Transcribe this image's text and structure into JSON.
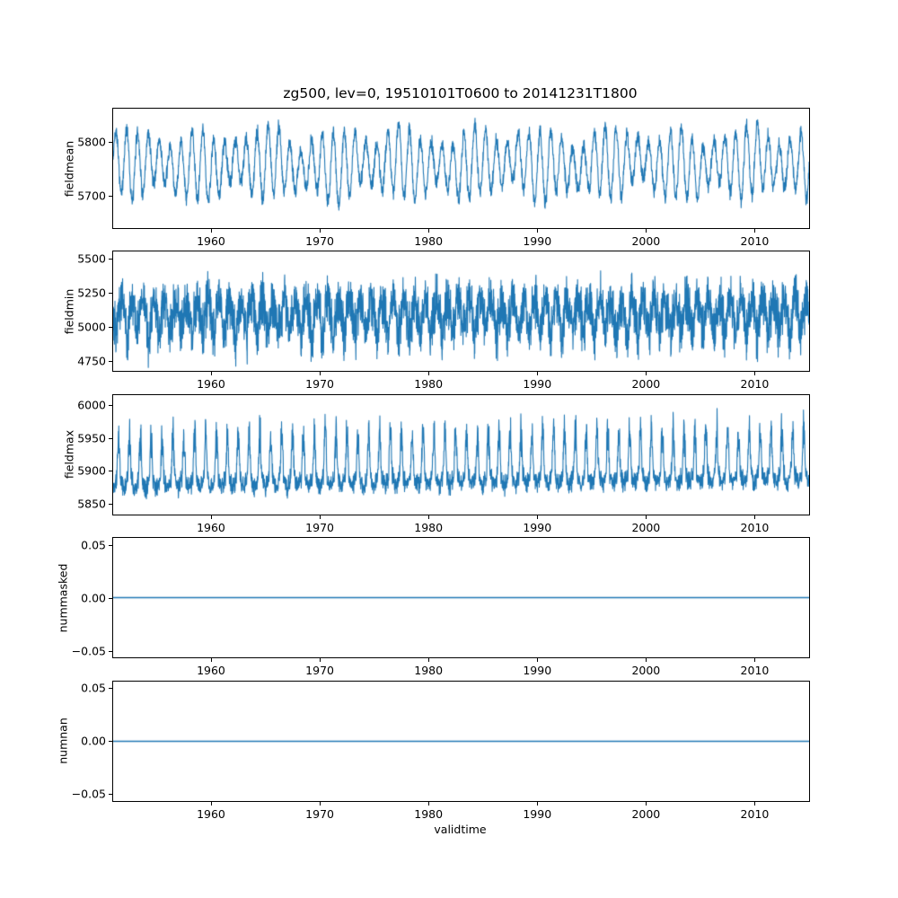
{
  "figure": {
    "title": "zg500, lev=0, 19510101T0600 to 20141231T1800",
    "xlabel": "validtime",
    "line_color": "#1f77b4",
    "background": "#ffffff"
  },
  "chart_data": [
    {
      "type": "line",
      "ylabel": "fieldmean",
      "xlim": [
        1951,
        2015
      ],
      "xtick_values": [
        1960,
        1970,
        1980,
        1990,
        2000,
        2010
      ],
      "xtick_labels": [
        "1960",
        "1970",
        "1980",
        "1990",
        "2000",
        "2010"
      ],
      "ylim": [
        5640,
        5862
      ],
      "ytick_values": [
        5700,
        5800
      ],
      "ytick_labels": [
        "5700",
        "5800"
      ],
      "grid": false,
      "legend": false,
      "series": [
        {
          "name": "fieldmean",
          "kind": "seasonal-mean",
          "summary": "Dense annual oscillation roughly between 5660 and 5855, mean about 5757, slight upward drift",
          "model": {
            "n": 3328,
            "t0": 1951,
            "t1": 2015,
            "seed": 42,
            "base": 5757,
            "trend": 0.05,
            "season_amp": 52,
            "season_phase": 0,
            "amp_mod": 0.28,
            "amp_mod_period": 6.3,
            "lf_amp": 13,
            "noise": 18
          }
        }
      ]
    },
    {
      "type": "line",
      "ylabel": "fieldmin",
      "xlim": [
        1951,
        2015
      ],
      "xtick_values": [
        1960,
        1970,
        1980,
        1990,
        2000,
        2010
      ],
      "xtick_labels": [
        "1960",
        "1970",
        "1980",
        "1990",
        "2000",
        "2010"
      ],
      "ylim": [
        4678,
        5553
      ],
      "ytick_values": [
        4750,
        5000,
        5250,
        5500
      ],
      "ytick_labels": [
        "4750",
        "5000",
        "5250",
        "5500"
      ],
      "grid": false,
      "legend": false,
      "series": [
        {
          "name": "fieldmin",
          "kind": "noisy-min",
          "summary": "Very noisy band mostly 4900-5350 around mean 5105, annual dips to about 4660, rare peaks near 5520",
          "model": {
            "n": 3900,
            "t0": 1951,
            "t1": 2015,
            "seed": 7,
            "base": 5105,
            "trend": 0,
            "season_amp": 90,
            "season_phase": 0.5,
            "noise": 170,
            "dip_threshold": 0.45,
            "dip_amp": 260,
            "spike_prob": 0.012,
            "spike_amp": 120
          }
        }
      ]
    },
    {
      "type": "line",
      "ylabel": "fieldmax",
      "xlim": [
        1951,
        2015
      ],
      "xtick_values": [
        1960,
        1970,
        1980,
        1990,
        2000,
        2010
      ],
      "xtick_labels": [
        "1960",
        "1970",
        "1980",
        "1990",
        "2000",
        "2010"
      ],
      "ylim": [
        5834,
        6015
      ],
      "ytick_values": [
        5850,
        5900,
        5950,
        6000
      ],
      "ytick_labels": [
        "5850",
        "5900",
        "5950",
        "6000"
      ],
      "grid": false,
      "legend": false,
      "series": [
        {
          "name": "fieldmax",
          "kind": "spiky-max",
          "summary": "Noisy band around 5865-5930 with annual upward spikes reaching 5950-6010, slight upward trend",
          "model": {
            "n": 3328,
            "t0": 1951,
            "t1": 2015,
            "seed": 11,
            "base": 5884,
            "trend": 0.15,
            "season_amp": 10,
            "season_phase": 0.25,
            "noise": 14,
            "spike_threshold": 0.5,
            "spike_amp": 210
          }
        }
      ]
    },
    {
      "type": "line",
      "ylabel": "nummasked",
      "xlim": [
        1951,
        2015
      ],
      "xtick_values": [
        1960,
        1970,
        1980,
        1990,
        2000,
        2010
      ],
      "xtick_labels": [
        "1960",
        "1970",
        "1980",
        "1990",
        "2000",
        "2010"
      ],
      "ylim": [
        -0.0564,
        0.0564
      ],
      "ytick_values": [
        0.05,
        0.0,
        -0.05
      ],
      "ytick_labels": [
        "0.05",
        "0.00",
        "−0.05"
      ],
      "grid": false,
      "legend": false,
      "series": [
        {
          "name": "nummasked",
          "kind": "constant",
          "summary": "Constant zero for the whole period",
          "model": {
            "t0": 1951,
            "t1": 2015,
            "base": 0
          }
        }
      ]
    },
    {
      "type": "line",
      "ylabel": "numnan",
      "xlim": [
        1951,
        2015
      ],
      "xtick_values": [
        1960,
        1970,
        1980,
        1990,
        2000,
        2010
      ],
      "xtick_labels": [
        "1960",
        "1970",
        "1980",
        "1990",
        "2000",
        "2010"
      ],
      "ylim": [
        -0.0564,
        0.0564
      ],
      "ytick_values": [
        0.05,
        0.0,
        -0.05
      ],
      "ytick_labels": [
        "0.05",
        "0.00",
        "−0.05"
      ],
      "grid": false,
      "legend": false,
      "series": [
        {
          "name": "numnan",
          "kind": "constant",
          "summary": "Constant zero for the whole period",
          "model": {
            "t0": 1951,
            "t1": 2015,
            "base": 0
          }
        }
      ]
    }
  ]
}
